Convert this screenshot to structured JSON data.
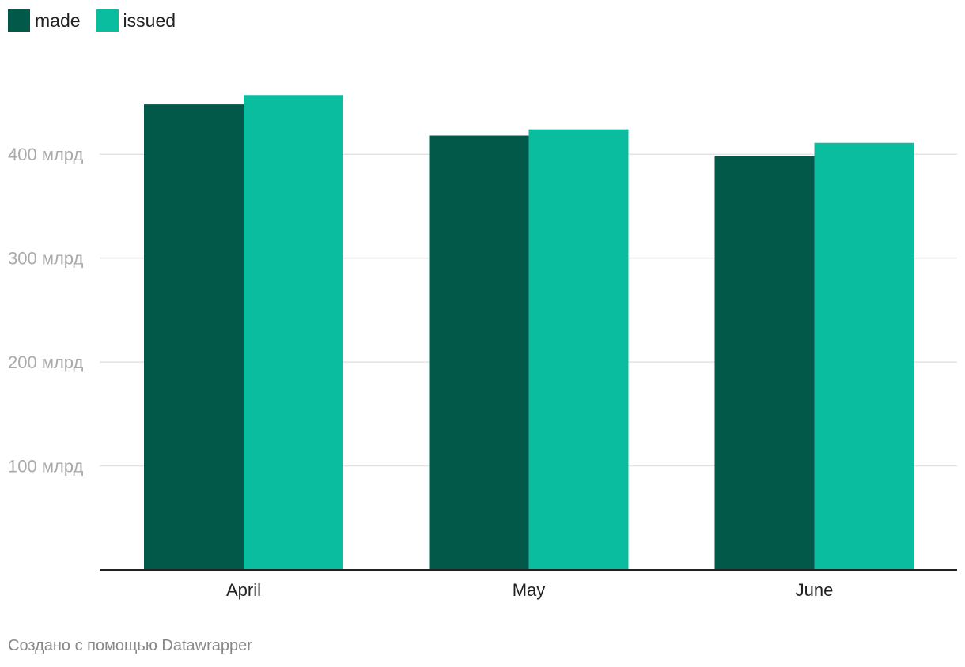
{
  "chart_data": {
    "type": "bar",
    "categories": [
      "April",
      "May",
      "June"
    ],
    "series": [
      {
        "name": "made",
        "values": [
          448,
          418,
          398
        ],
        "color": "#02594a"
      },
      {
        "name": "issued",
        "values": [
          457,
          424,
          411
        ],
        "color": "#0bbd9f"
      }
    ],
    "y_ticks": [
      {
        "value": 100,
        "label": "100 млрд"
      },
      {
        "value": 200,
        "label": "200 млрд"
      },
      {
        "value": 300,
        "label": "300 млрд"
      },
      {
        "value": 400,
        "label": "400 млрд"
      }
    ],
    "ylim": [
      0,
      500
    ],
    "grid": true,
    "legend_position": "top-left"
  },
  "footer": {
    "credit": "Создано с помощью Datawrapper"
  }
}
